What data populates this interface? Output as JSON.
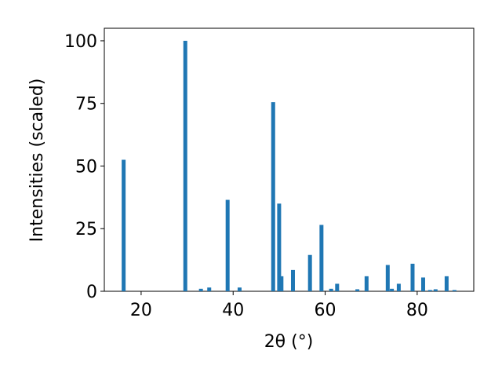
{
  "chart_data": {
    "type": "bar",
    "xlabel": "2θ (°)",
    "ylabel": "Intensities (scaled)",
    "color": "#1f77b4",
    "x": [
      16.2,
      29.6,
      33.0,
      34.8,
      38.8,
      41.4,
      48.7,
      50.0,
      50.5,
      53.0,
      56.7,
      59.2,
      61.3,
      62.6,
      67.0,
      69.0,
      73.6,
      74.5,
      76.0,
      79.0,
      81.3,
      82.8,
      84.0,
      86.4,
      88.1
    ],
    "values": [
      52.5,
      100,
      1,
      1.5,
      36.5,
      1.5,
      75.5,
      35,
      6,
      8.5,
      14.5,
      26.5,
      1,
      3,
      0.8,
      6,
      10.5,
      1,
      3,
      11,
      5.5,
      0.5,
      0.8,
      6,
      0.5
    ],
    "xlim": [
      12.0,
      92.3
    ],
    "xticks": [
      20,
      40,
      60,
      80
    ],
    "ylim": [
      0,
      105
    ],
    "yticks": [
      0,
      25,
      50,
      75,
      100
    ]
  }
}
